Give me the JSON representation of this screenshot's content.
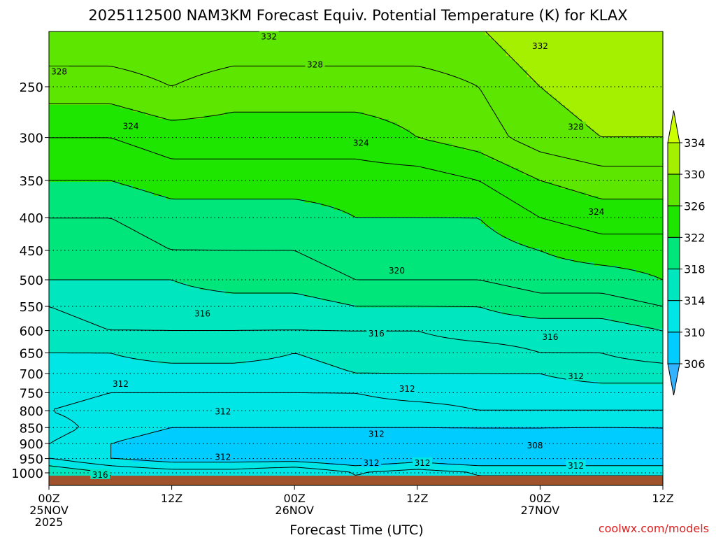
{
  "chart_data": {
    "type": "heatmap",
    "title": "2025112500 NAM3KM Forecast Equiv. Potential Temperature (K) for KLAX",
    "xlabel": "Forecast Time (UTC)",
    "ylabel": "",
    "watermark": "coolwx.com/models",
    "x_ticks": [
      {
        "hour": 0,
        "lines": [
          "00Z",
          "25NOV",
          "2025"
        ]
      },
      {
        "hour": 12,
        "lines": [
          "12Z"
        ]
      },
      {
        "hour": 24,
        "lines": [
          "00Z",
          "26NOV"
        ]
      },
      {
        "hour": 36,
        "lines": [
          "12Z"
        ]
      },
      {
        "hour": 48,
        "lines": [
          "00Z",
          "27NOV"
        ]
      },
      {
        "hour": 60,
        "lines": [
          "12Z"
        ]
      }
    ],
    "x_range_hours": [
      0,
      60
    ],
    "y_scale": "log-pressure",
    "y_range_hPa": [
      1025,
      200
    ],
    "y_ticks": [
      250,
      300,
      350,
      400,
      450,
      500,
      550,
      600,
      650,
      700,
      750,
      800,
      850,
      900,
      950,
      1000
    ],
    "grid": "dotted-horizontal",
    "colorbar": {
      "ticks": [
        334,
        330,
        326,
        322,
        318,
        314,
        310,
        306
      ],
      "colors": [
        "#ccff00",
        "#a4f000",
        "#5ce600",
        "#1ee600",
        "#00e67a",
        "#00e6be",
        "#00e6e6",
        "#00ccff",
        "#33b3ff"
      ],
      "extend": "both"
    },
    "levels_hPa": [
      200,
      250,
      300,
      350,
      400,
      450,
      500,
      550,
      600,
      650,
      700,
      750,
      800,
      850,
      900,
      950,
      1000
    ],
    "hours": [
      0,
      6,
      12,
      18,
      24,
      30,
      36,
      42,
      48,
      54,
      60
    ],
    "values": [
      [
        330,
        330,
        330,
        330,
        330,
        330,
        330,
        330,
        332,
        332,
        332
      ],
      [
        327,
        327,
        328,
        327,
        327,
        327,
        327,
        328,
        330,
        331,
        331
      ],
      [
        324,
        324,
        325,
        325,
        325,
        325,
        326,
        327,
        329,
        330,
        330
      ],
      [
        322,
        322,
        323,
        323,
        323,
        323,
        323,
        324,
        326,
        327,
        327
      ],
      [
        320,
        320,
        321,
        321,
        321,
        322,
        322,
        322,
        324,
        325,
        325
      ],
      [
        319,
        319,
        320,
        320,
        320,
        321,
        321,
        321,
        322,
        323,
        323
      ],
      [
        318,
        318,
        318,
        319,
        319,
        320,
        320,
        320,
        321,
        321,
        322
      ],
      [
        316,
        317,
        317,
        317,
        317,
        318,
        318,
        318,
        319,
        319,
        320
      ],
      [
        315,
        316,
        316,
        316,
        316,
        316,
        316,
        317,
        317,
        317,
        318
      ],
      [
        314,
        314,
        315,
        315,
        314,
        315,
        315,
        315,
        316,
        316,
        317
      ],
      [
        313,
        313,
        313,
        313,
        313,
        314,
        314,
        314,
        314,
        315,
        315
      ],
      [
        313,
        312,
        312,
        312,
        312,
        312,
        313,
        313,
        313,
        313,
        313
      ],
      [
        312,
        311,
        311,
        311,
        311,
        311,
        311,
        312,
        312,
        312,
        312
      ],
      [
        313,
        311,
        310,
        310,
        310,
        310,
        310,
        310,
        310,
        310,
        310
      ],
      [
        312,
        310,
        309,
        309,
        309,
        309,
        309,
        309,
        309,
        308,
        309
      ],
      [
        312,
        310,
        309,
        309,
        309,
        308,
        309,
        308,
        308,
        308,
        308
      ],
      [
        316,
        314,
        313,
        313,
        314,
        312,
        313,
        312,
        312,
        312,
        312
      ]
    ],
    "contour_labels": [
      {
        "text": "332",
        "hour": 21.5,
        "p": 209
      },
      {
        "text": "332",
        "hour": 48.0,
        "p": 216
      },
      {
        "text": "328",
        "hour": 1.0,
        "p": 237
      },
      {
        "text": "328",
        "hour": 26.0,
        "p": 231
      },
      {
        "text": "328",
        "hour": 51.5,
        "p": 289
      },
      {
        "text": "324",
        "hour": 8.0,
        "p": 288
      },
      {
        "text": "324",
        "hour": 30.5,
        "p": 306
      },
      {
        "text": "324",
        "hour": 53.5,
        "p": 392
      },
      {
        "text": "320",
        "hour": 34.0,
        "p": 484
      },
      {
        "text": "316",
        "hour": 15.0,
        "p": 565
      },
      {
        "text": "316",
        "hour": 32.0,
        "p": 607
      },
      {
        "text": "316",
        "hour": 49.0,
        "p": 614
      },
      {
        "text": "312",
        "hour": 7.0,
        "p": 727
      },
      {
        "text": "312",
        "hour": 17.0,
        "p": 803
      },
      {
        "text": "312",
        "hour": 35.0,
        "p": 740
      },
      {
        "text": "312",
        "hour": 32.0,
        "p": 870
      },
      {
        "text": "312",
        "hour": 51.5,
        "p": 707
      },
      {
        "text": "308",
        "hour": 47.5,
        "p": 907
      },
      {
        "text": "312",
        "hour": 17.0,
        "p": 945
      },
      {
        "text": "312",
        "hour": 31.5,
        "p": 965
      },
      {
        "text": "312",
        "hour": 36.5,
        "p": 965
      },
      {
        "text": "312",
        "hour": 51.5,
        "p": 975
      },
      {
        "text": "316",
        "hour": 5.0,
        "p": 1007
      }
    ],
    "ground_color": "#a0522d"
  }
}
